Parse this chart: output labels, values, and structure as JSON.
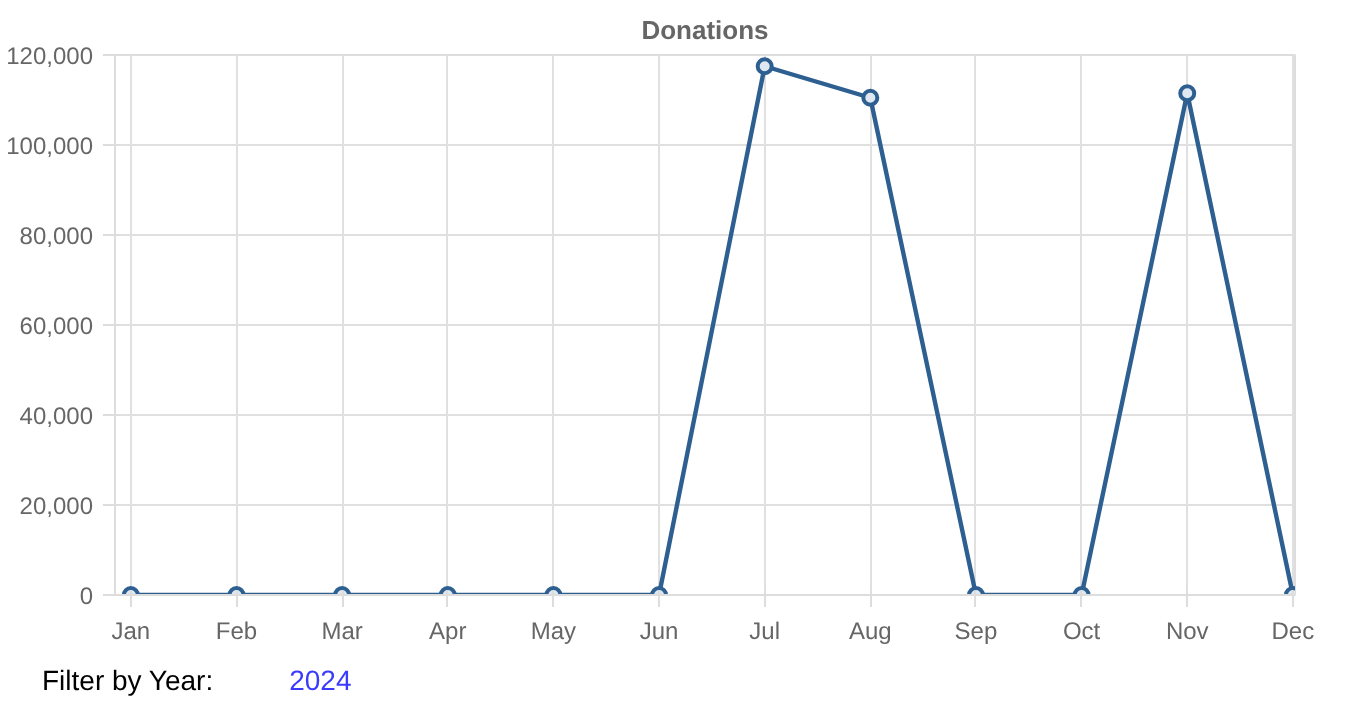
{
  "chart_data": {
    "type": "line",
    "title": "Donations",
    "categories": [
      "Jan",
      "Feb",
      "Mar",
      "Apr",
      "May",
      "Jun",
      "Jul",
      "Aug",
      "Sep",
      "Oct",
      "Nov",
      "Dec"
    ],
    "series": [
      {
        "color": "#2e5f91",
        "values": [
          0,
          0,
          0,
          0,
          0,
          0,
          117500,
          110500,
          0,
          0,
          111500,
          0
        ]
      }
    ],
    "ylim": [
      0,
      120000
    ],
    "yticks": [
      {
        "value": 0,
        "label": "0"
      },
      {
        "value": 20000,
        "label": "20,000"
      },
      {
        "value": 40000,
        "label": "40,000"
      },
      {
        "value": 60000,
        "label": "60,000"
      },
      {
        "value": 80000,
        "label": "80,000"
      },
      {
        "value": 100000,
        "label": "100,000"
      },
      {
        "value": 120000,
        "label": "120,000"
      }
    ],
    "grid": true,
    "marker": "circle",
    "line_style": "solid",
    "annotations": [
      "Filter by Year:",
      "2024"
    ]
  }
}
